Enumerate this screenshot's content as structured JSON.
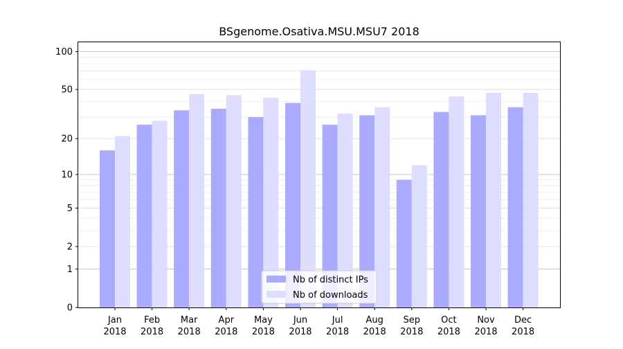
{
  "chart_data": {
    "type": "bar",
    "title": "BSgenome.Osativa.MSU.MSU7 2018",
    "xlabel": "",
    "ylabel": "",
    "yscale": "log1p",
    "ylim": [
      0,
      120
    ],
    "yticks": [
      0,
      1,
      2,
      5,
      10,
      20,
      50,
      100
    ],
    "ytick_labels": [
      "0",
      "1",
      "2",
      "5",
      "10",
      "20",
      "50",
      "100"
    ],
    "grid": true,
    "legend_position": "bottom-center",
    "categories": [
      [
        "Jan",
        "2018"
      ],
      [
        "Feb",
        "2018"
      ],
      [
        "Mar",
        "2018"
      ],
      [
        "Apr",
        "2018"
      ],
      [
        "May",
        "2018"
      ],
      [
        "Jun",
        "2018"
      ],
      [
        "Jul",
        "2018"
      ],
      [
        "Aug",
        "2018"
      ],
      [
        "Sep",
        "2018"
      ],
      [
        "Oct",
        "2018"
      ],
      [
        "Nov",
        "2018"
      ],
      [
        "Dec",
        "2018"
      ]
    ],
    "series": [
      {
        "name": "Nb of distinct IPs",
        "color": "#aaaaff",
        "values": [
          16,
          26,
          34,
          35,
          30,
          39,
          26,
          31,
          9,
          33,
          31,
          36
        ]
      },
      {
        "name": "Nb of downloads",
        "color": "#ddddff",
        "values": [
          21,
          28,
          46,
          45,
          43,
          71,
          32,
          36,
          12,
          44,
          47,
          47
        ]
      }
    ]
  }
}
